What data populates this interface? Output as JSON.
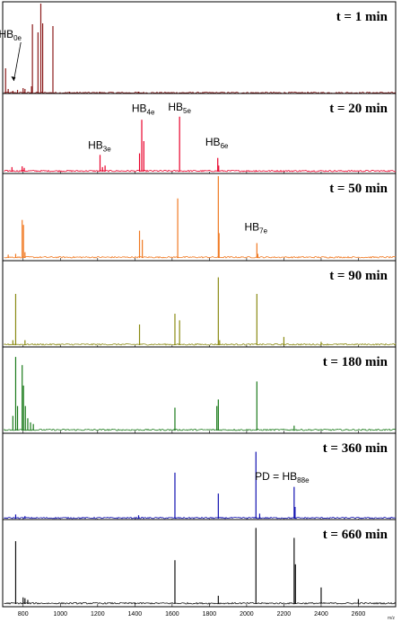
{
  "chart_data": [
    {
      "type": "line",
      "title": "t = 1 min",
      "color": "#8b1a1a",
      "xlim": [
        700,
        2800
      ],
      "peaks": [
        [
          706,
          0.28
        ],
        [
          720,
          0.05
        ],
        [
          745,
          0.03
        ],
        [
          770,
          0.04
        ],
        [
          800,
          0.06
        ],
        [
          810,
          0.05
        ],
        [
          845,
          0.08
        ],
        [
          850,
          0.77
        ],
        [
          880,
          0.68
        ],
        [
          895,
          1.0
        ],
        [
          905,
          0.78
        ],
        [
          960,
          0.75
        ],
        [
          1050,
          0.02
        ],
        [
          1210,
          0.02
        ],
        [
          1420,
          0.02
        ]
      ],
      "annotations": [
        {
          "text": "HB",
          "sub": "0e",
          "x": 730,
          "rel_y": 0.62,
          "arrow_to": [
            750,
            0.14
          ]
        }
      ]
    },
    {
      "type": "line",
      "title": "t = 20 min",
      "color": "#e8002a",
      "xlim": [
        700,
        2800
      ],
      "peaks": [
        [
          740,
          0.06
        ],
        [
          795,
          0.07
        ],
        [
          806,
          0.05
        ],
        [
          1213,
          0.22
        ],
        [
          1226,
          0.06
        ],
        [
          1240,
          0.08
        ],
        [
          1425,
          0.24
        ],
        [
          1437,
          0.68
        ],
        [
          1448,
          0.4
        ],
        [
          1640,
          0.72
        ],
        [
          1845,
          0.18
        ],
        [
          1850,
          0.08
        ],
        [
          2050,
          0.02
        ]
      ],
      "annotations": [
        {
          "text": "HB",
          "sub": "3e",
          "x": 1210,
          "rel_y": 0.3
        },
        {
          "text": "HB",
          "sub": "4e",
          "x": 1445,
          "rel_y": 0.78
        },
        {
          "text": "HB",
          "sub": "5e",
          "x": 1640,
          "rel_y": 0.8
        },
        {
          "text": "HB",
          "sub": "6e",
          "x": 1840,
          "rel_y": 0.34
        }
      ]
    },
    {
      "type": "line",
      "title": "t = 50 min",
      "color": "#f07820",
      "xlim": [
        700,
        2800
      ],
      "peaks": [
        [
          720,
          0.04
        ],
        [
          760,
          0.05
        ],
        [
          795,
          0.46
        ],
        [
          802,
          0.4
        ],
        [
          810,
          0.07
        ],
        [
          1425,
          0.33
        ],
        [
          1440,
          0.22
        ],
        [
          1630,
          0.72
        ],
        [
          1848,
          0.99
        ],
        [
          1852,
          0.3
        ],
        [
          2055,
          0.18
        ],
        [
          2060,
          0.05
        ]
      ],
      "annotations": [
        {
          "text": "HB",
          "sub": "7e",
          "x": 2050,
          "rel_y": 0.33
        }
      ]
    },
    {
      "type": "line",
      "title": "t = 90 min",
      "color": "#8a8a12",
      "xlim": [
        700,
        2800
      ],
      "peaks": [
        [
          745,
          0.06
        ],
        [
          760,
          0.62
        ],
        [
          810,
          0.06
        ],
        [
          1425,
          0.25
        ],
        [
          1615,
          0.38
        ],
        [
          1640,
          0.3
        ],
        [
          1848,
          0.82
        ],
        [
          1855,
          0.06
        ],
        [
          2055,
          0.62
        ],
        [
          2200,
          0.1
        ],
        [
          2400,
          0.04
        ]
      ],
      "annotations": []
    },
    {
      "type": "line",
      "title": "t = 180 min",
      "color": "#1a7a1a",
      "xlim": [
        700,
        2800
      ],
      "peaks": [
        [
          745,
          0.18
        ],
        [
          760,
          0.9
        ],
        [
          770,
          0.3
        ],
        [
          795,
          0.8
        ],
        [
          802,
          0.55
        ],
        [
          812,
          0.3
        ],
        [
          825,
          0.15
        ],
        [
          840,
          0.1
        ],
        [
          855,
          0.08
        ],
        [
          1615,
          0.28
        ],
        [
          1840,
          0.3
        ],
        [
          1848,
          0.38
        ],
        [
          2055,
          0.6
        ],
        [
          2255,
          0.06
        ]
      ],
      "annotations": []
    },
    {
      "type": "line",
      "title": "t = 360 min",
      "color": "#1010b0",
      "xlim": [
        700,
        2800
      ],
      "peaks": [
        [
          760,
          0.05
        ],
        [
          810,
          0.03
        ],
        [
          1420,
          0.04
        ],
        [
          1615,
          0.55
        ],
        [
          1848,
          0.3
        ],
        [
          2050,
          0.8
        ],
        [
          2070,
          0.06
        ],
        [
          2255,
          0.38
        ],
        [
          2260,
          0.14
        ]
      ],
      "annotations": [
        {
          "text": "PD = HB",
          "sub": "88e",
          "x": 2190,
          "rel_y": 0.46
        }
      ]
    },
    {
      "type": "line",
      "title": "t = 660 min",
      "color": "#111111",
      "xlim": [
        700,
        2800
      ],
      "peaks": [
        [
          760,
          0.76
        ],
        [
          800,
          0.08
        ],
        [
          810,
          0.07
        ],
        [
          825,
          0.05
        ],
        [
          1400,
          0.02
        ],
        [
          1615,
          0.53
        ],
        [
          1848,
          0.1
        ],
        [
          2050,
          0.92
        ],
        [
          2255,
          0.8
        ],
        [
          2262,
          0.48
        ],
        [
          2400,
          0.2
        ],
        [
          2600,
          0.06
        ]
      ],
      "annotations": []
    }
  ],
  "x_axis": {
    "ticks": [
      800,
      1000,
      1200,
      1400,
      1600,
      1800,
      2000,
      2200,
      2400,
      2600
    ],
    "tick_labels": [
      "800",
      "1000",
      "1200",
      "1400",
      "1600",
      "1800",
      "2000",
      "2200",
      "2400",
      "2600"
    ],
    "unit_label": "m/z"
  }
}
